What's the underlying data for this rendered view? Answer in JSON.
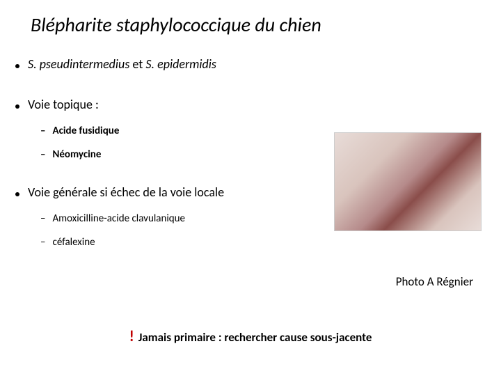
{
  "title": "Blépharite staphylococcique du chien",
  "bullets": {
    "species": {
      "prefix_it": "S. pseudintermedius",
      "mid": " et ",
      "suffix_it": "S. epidermidis"
    },
    "topical": {
      "label": "Voie topique :",
      "items": [
        "Acide fusidique",
        "Néomycine"
      ]
    },
    "systemic": {
      "label": "Voie générale si échec de la voie locale",
      "items": [
        "Amoxicilline-acide clavulanique",
        "céfalexine"
      ]
    }
  },
  "photo_credit": "Photo A Régnier",
  "warning": {
    "mark": "!",
    "text": "Jamais primaire : rechercher cause sous-jacente"
  },
  "colors": {
    "warning_mark": "#c00000",
    "text": "#000000",
    "bg": "#ffffff"
  }
}
